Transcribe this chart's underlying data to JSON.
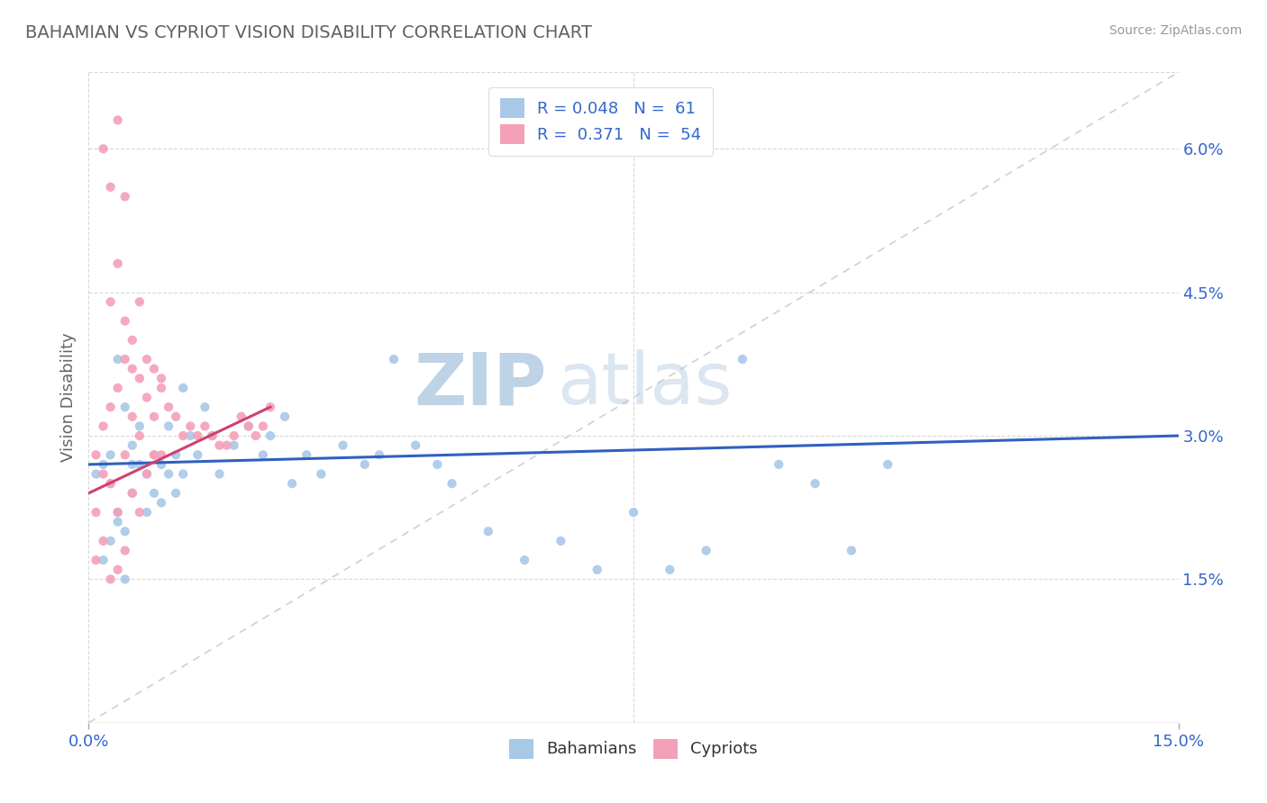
{
  "title": "BAHAMIAN VS CYPRIOT VISION DISABILITY CORRELATION CHART",
  "source": "Source: ZipAtlas.com",
  "ylabel": "Vision Disability",
  "xlim": [
    0.0,
    0.15
  ],
  "ylim": [
    0.0,
    0.068
  ],
  "xtick_labels": [
    "0.0%",
    "15.0%"
  ],
  "yticks_right": [
    0.015,
    0.03,
    0.045,
    0.06
  ],
  "ytick_labels_right": [
    "1.5%",
    "3.0%",
    "4.5%",
    "6.0%"
  ],
  "legend_r1": "R = 0.048",
  "legend_n1": "N =  61",
  "legend_r2": "R =  0.371",
  "legend_n2": "N =  54",
  "blue_color": "#a8c8e8",
  "pink_color": "#f4a0b8",
  "blue_line_color": "#3060c0",
  "pink_line_color": "#d04070",
  "ref_line_color": "#d0d0d0",
  "title_color": "#606060",
  "watermark_zip": "ZIP",
  "watermark_atlas": "atlas",
  "bah_x": [
    0.001,
    0.002,
    0.003,
    0.003,
    0.004,
    0.004,
    0.005,
    0.005,
    0.006,
    0.006,
    0.007,
    0.007,
    0.008,
    0.008,
    0.009,
    0.009,
    0.01,
    0.01,
    0.011,
    0.011,
    0.012,
    0.012,
    0.013,
    0.013,
    0.014,
    0.015,
    0.016,
    0.017,
    0.018,
    0.02,
    0.022,
    0.024,
    0.025,
    0.027,
    0.028,
    0.03,
    0.032,
    0.035,
    0.038,
    0.04,
    0.042,
    0.045,
    0.048,
    0.05,
    0.055,
    0.06,
    0.065,
    0.07,
    0.075,
    0.08,
    0.085,
    0.09,
    0.095,
    0.1,
    0.105,
    0.11,
    0.002,
    0.003,
    0.004,
    0.005,
    0.006
  ],
  "bah_y": [
    0.026,
    0.027,
    0.028,
    0.025,
    0.038,
    0.022,
    0.033,
    0.02,
    0.029,
    0.024,
    0.027,
    0.031,
    0.026,
    0.022,
    0.028,
    0.024,
    0.027,
    0.023,
    0.031,
    0.026,
    0.028,
    0.024,
    0.035,
    0.026,
    0.03,
    0.028,
    0.033,
    0.03,
    0.026,
    0.029,
    0.031,
    0.028,
    0.03,
    0.032,
    0.025,
    0.028,
    0.026,
    0.029,
    0.027,
    0.028,
    0.038,
    0.029,
    0.027,
    0.025,
    0.02,
    0.017,
    0.019,
    0.016,
    0.022,
    0.016,
    0.018,
    0.038,
    0.027,
    0.025,
    0.018,
    0.027,
    0.017,
    0.019,
    0.021,
    0.015,
    0.027
  ],
  "cyp_x": [
    0.001,
    0.001,
    0.001,
    0.002,
    0.002,
    0.002,
    0.003,
    0.003,
    0.003,
    0.004,
    0.004,
    0.004,
    0.005,
    0.005,
    0.005,
    0.006,
    0.006,
    0.006,
    0.007,
    0.007,
    0.007,
    0.008,
    0.008,
    0.009,
    0.009,
    0.01,
    0.01,
    0.011,
    0.012,
    0.013,
    0.014,
    0.015,
    0.016,
    0.017,
    0.018,
    0.019,
    0.02,
    0.021,
    0.022,
    0.023,
    0.024,
    0.025,
    0.003,
    0.004,
    0.005,
    0.002,
    0.003,
    0.004,
    0.005,
    0.006,
    0.007,
    0.008,
    0.009,
    0.01
  ],
  "cyp_y": [
    0.028,
    0.022,
    0.017,
    0.031,
    0.026,
    0.019,
    0.033,
    0.025,
    0.015,
    0.035,
    0.022,
    0.016,
    0.038,
    0.028,
    0.018,
    0.04,
    0.032,
    0.024,
    0.036,
    0.03,
    0.022,
    0.034,
    0.026,
    0.037,
    0.028,
    0.035,
    0.028,
    0.033,
    0.032,
    0.03,
    0.031,
    0.03,
    0.031,
    0.03,
    0.029,
    0.029,
    0.03,
    0.032,
    0.031,
    0.03,
    0.031,
    0.033,
    0.056,
    0.063,
    0.055,
    0.06,
    0.044,
    0.048,
    0.042,
    0.037,
    0.044,
    0.038,
    0.032,
    0.036
  ],
  "blue_trend_x": [
    0.0,
    0.15
  ],
  "blue_trend_y": [
    0.027,
    0.03
  ],
  "pink_trend_x": [
    0.0,
    0.025
  ],
  "pink_trend_y": [
    0.024,
    0.033
  ]
}
